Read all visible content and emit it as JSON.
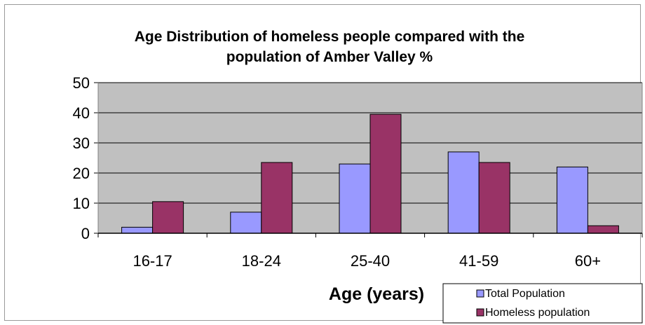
{
  "chart_data": {
    "type": "bar",
    "title": "Age Distribution of homeless people compared with the population of Amber Valley %",
    "title_lines": [
      "Age Distribution of homeless people compared with the",
      "population of Amber Valley %"
    ],
    "xlabel": "Age (years)",
    "ylabel": "",
    "categories": [
      "16-17",
      "18-24",
      "25-40",
      "41-59",
      "60+"
    ],
    "ylim": [
      0,
      50
    ],
    "yticks": [
      "0",
      "10",
      "20",
      "30",
      "40",
      "50"
    ],
    "grid": true,
    "legend_position": "bottom-right",
    "series": [
      {
        "name": "Total Population",
        "color": "#9999ff",
        "values": [
          2,
          7,
          23,
          27,
          22
        ]
      },
      {
        "name": "Homeless population",
        "color": "#993366",
        "values": [
          10.5,
          23.5,
          39.5,
          23.5,
          2.5
        ]
      }
    ],
    "plot_background": "#c0c0c0"
  }
}
